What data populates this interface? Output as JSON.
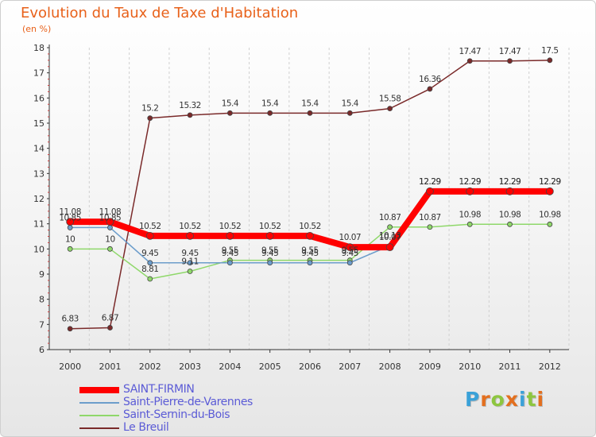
{
  "colors": {
    "accent": "#e8611a",
    "legend_text": "#5b5bd6",
    "axis": "#333333",
    "grid": "#d0d0d0"
  },
  "chart_data": {
    "type": "line",
    "title": "Evolution du Taux de Taxe d'Habitation",
    "subtitle": "(en %)",
    "xlabel": "",
    "ylabel": "",
    "x": [
      "2000",
      "2001",
      "2002",
      "2003",
      "2004",
      "2005",
      "2006",
      "2007",
      "2008",
      "2009",
      "2010",
      "2011",
      "2012"
    ],
    "ylim": [
      6,
      18
    ],
    "yticks": [
      6,
      7,
      8,
      9,
      10,
      11,
      12,
      13,
      14,
      15,
      16,
      17,
      18
    ],
    "grid": "vertical",
    "legend_position": "bottom-left",
    "series": [
      {
        "name": "SAINT-FIRMIN",
        "color": "#ff0000",
        "values": [
          11.08,
          11.08,
          10.52,
          10.52,
          10.52,
          10.52,
          10.52,
          10.07,
          10.07,
          12.29,
          12.29,
          12.29,
          12.29
        ],
        "labels": [
          "11.08",
          "11.08",
          "10.52",
          "10.52",
          "10.52",
          "10.52",
          "10.52",
          "10.07",
          "10.07",
          "12.29",
          "12.29",
          "12.29",
          "12.29"
        ]
      },
      {
        "name": "Saint-Pierre-de-Varennes",
        "color": "#6c9dcb",
        "values": [
          10.85,
          10.85,
          9.45,
          9.45,
          9.45,
          9.45,
          9.45,
          9.45,
          10.13,
          12.29,
          12.29,
          12.29,
          12.29
        ],
        "labels": [
          "10.85",
          "10.85",
          "9.45",
          "9.45",
          "9.45",
          "9.45",
          "9.45",
          "9.45",
          "10.13",
          "12.29",
          "12.29",
          "12.29",
          "12.29"
        ]
      },
      {
        "name": "Saint-Sernin-du-Bois",
        "color": "#8fd86a",
        "values": [
          10,
          10,
          8.81,
          9.11,
          9.55,
          9.55,
          9.55,
          9.55,
          10.87,
          10.87,
          10.98,
          10.98,
          10.98
        ],
        "labels": [
          "10",
          "10",
          "8.81",
          "9.11",
          "9.55",
          "9.55",
          "9.55",
          "9.55",
          "10.87",
          "10.87",
          "10.98",
          "10.98",
          "10.98"
        ]
      },
      {
        "name": "Le Breuil",
        "color": "#7a2a2a",
        "values": [
          6.83,
          6.87,
          15.2,
          15.32,
          15.4,
          15.4,
          15.4,
          15.4,
          15.58,
          16.36,
          17.47,
          17.47,
          17.5
        ],
        "labels": [
          "6.83",
          "6.87",
          "15.2",
          "15.32",
          "15.4",
          "15.4",
          "15.4",
          "15.4",
          "15.58",
          "16.36",
          "17.47",
          "17.47",
          "17.5"
        ]
      }
    ]
  },
  "brand": {
    "letters": [
      {
        "ch": "P",
        "color": "#3aa1d8"
      },
      {
        "ch": "r",
        "color": "#e36f1e"
      },
      {
        "ch": "o",
        "color": "#8dc63f"
      },
      {
        "ch": "x",
        "color": "#e36f1e"
      },
      {
        "ch": "i",
        "color": "#3aa1d8"
      },
      {
        "ch": "t",
        "color": "#8dc63f"
      },
      {
        "ch": "i",
        "color": "#e36f1e"
      }
    ]
  }
}
